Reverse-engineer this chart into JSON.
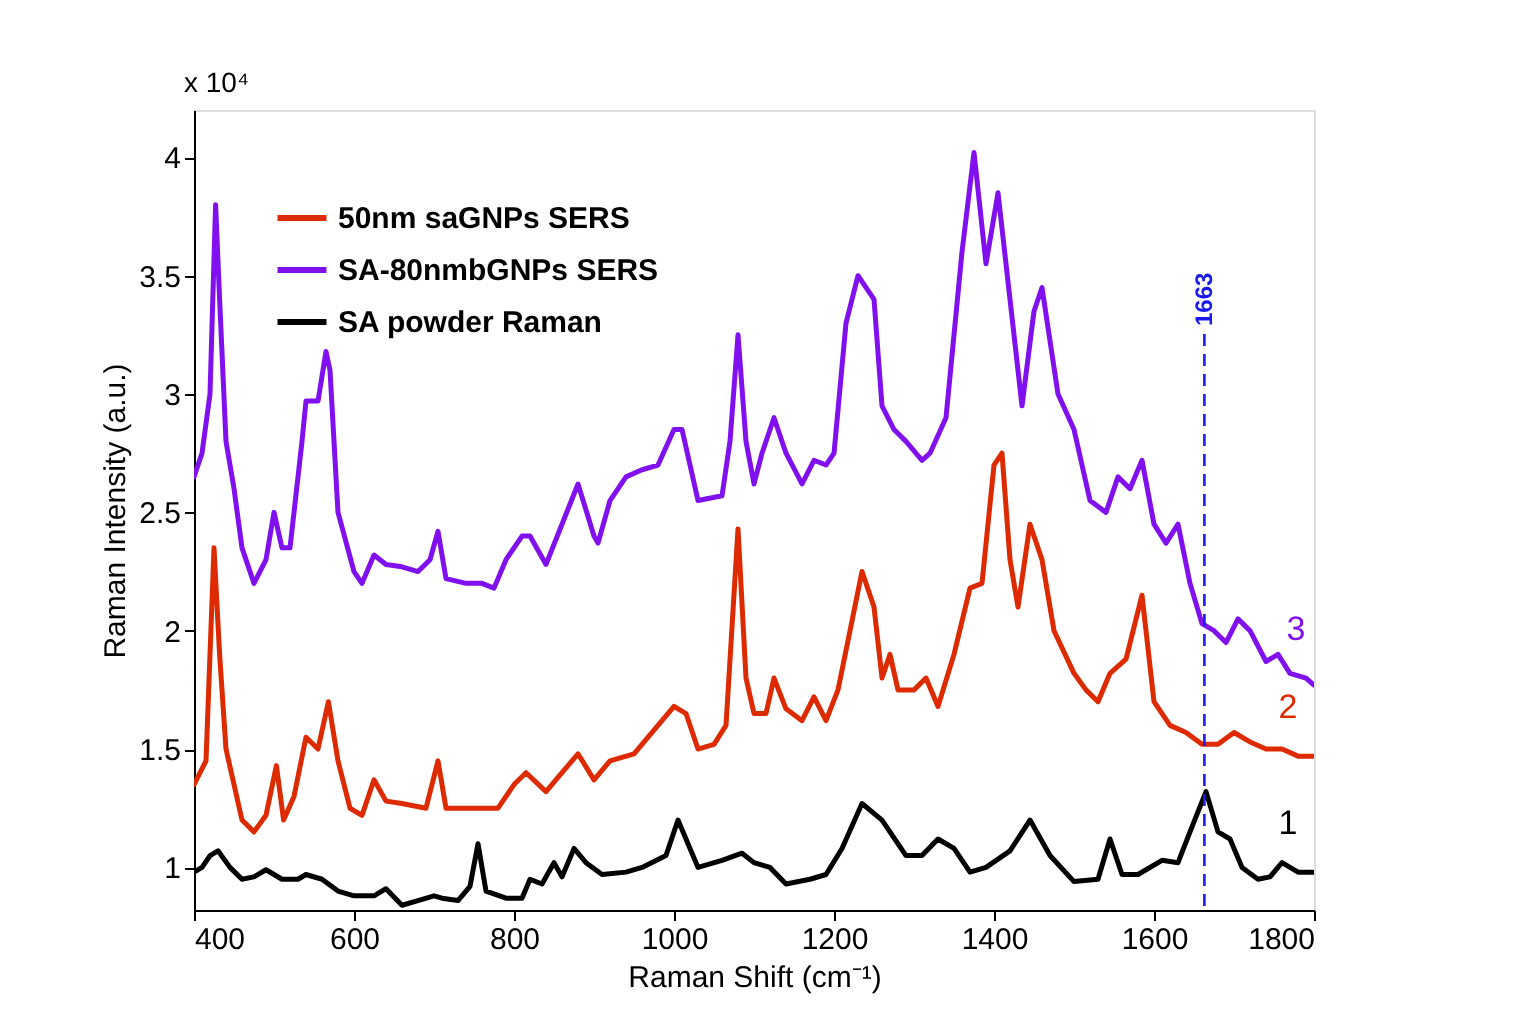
{
  "chart_data": {
    "type": "line",
    "xlabel": "Raman Shift (cm⁻¹)",
    "ylabel": "Raman Intensity (a.u.)",
    "xlim": [
      400,
      1800
    ],
    "xticks": [
      400,
      600,
      800,
      1000,
      1200,
      1400,
      1600,
      1800
    ],
    "ylim": [
      0.82,
      4.2
    ],
    "yticks": [
      1,
      1.5,
      2,
      2.5,
      3,
      3.5,
      4
    ],
    "grid": false,
    "legend": "top left",
    "line_style": "solid",
    "marker": "none",
    "series": [
      {
        "name": "50nm saGNPs SERS",
        "color": "#dd2a00",
        "x": [
          400,
          415,
          425,
          432,
          440,
          460,
          475,
          490,
          503,
          512,
          525,
          540,
          555,
          568,
          580,
          595,
          610,
          625,
          640,
          660,
          690,
          705,
          715,
          750,
          780,
          800,
          815,
          840,
          860,
          880,
          900,
          920,
          950,
          975,
          1000,
          1015,
          1030,
          1050,
          1065,
          1080,
          1090,
          1100,
          1115,
          1125,
          1140,
          1160,
          1175,
          1190,
          1205,
          1220,
          1235,
          1250,
          1260,
          1270,
          1280,
          1300,
          1315,
          1330,
          1350,
          1370,
          1385,
          1400,
          1410,
          1420,
          1430,
          1445,
          1460,
          1475,
          1500,
          1515,
          1530,
          1545,
          1565,
          1585,
          1600,
          1620,
          1640,
          1660,
          1680,
          1700,
          1720,
          1740,
          1760,
          1780,
          1800
        ],
        "values": [
          1.35,
          1.45,
          2.35,
          1.9,
          1.5,
          1.2,
          1.15,
          1.22,
          1.43,
          1.2,
          1.3,
          1.55,
          1.5,
          1.7,
          1.45,
          1.25,
          1.22,
          1.37,
          1.28,
          1.27,
          1.25,
          1.45,
          1.25,
          1.25,
          1.25,
          1.35,
          1.4,
          1.32,
          1.4,
          1.48,
          1.37,
          1.45,
          1.48,
          1.58,
          1.68,
          1.65,
          1.5,
          1.52,
          1.6,
          2.43,
          1.8,
          1.65,
          1.65,
          1.8,
          1.67,
          1.62,
          1.72,
          1.62,
          1.75,
          2.0,
          2.25,
          2.1,
          1.8,
          1.9,
          1.75,
          1.75,
          1.8,
          1.68,
          1.9,
          2.18,
          2.2,
          2.7,
          2.75,
          2.3,
          2.1,
          2.45,
          2.3,
          2.0,
          1.82,
          1.75,
          1.7,
          1.82,
          1.88,
          2.15,
          1.7,
          1.6,
          1.57,
          1.52,
          1.52,
          1.57,
          1.53,
          1.5,
          1.5,
          1.47,
          1.47
        ]
      },
      {
        "name": "SA-80nmbGNPs SERS",
        "color": "#8010ee",
        "x": [
          400,
          410,
          420,
          427,
          432,
          440,
          450,
          460,
          475,
          490,
          500,
          510,
          520,
          535,
          540,
          555,
          565,
          570,
          580,
          600,
          610,
          625,
          640,
          660,
          680,
          695,
          705,
          715,
          740,
          760,
          775,
          790,
          810,
          820,
          840,
          860,
          880,
          900,
          905,
          920,
          940,
          960,
          980,
          1000,
          1010,
          1030,
          1060,
          1070,
          1080,
          1090,
          1100,
          1110,
          1125,
          1140,
          1160,
          1175,
          1190,
          1200,
          1215,
          1230,
          1250,
          1260,
          1275,
          1290,
          1310,
          1320,
          1340,
          1360,
          1375,
          1390,
          1405,
          1420,
          1435,
          1450,
          1460,
          1480,
          1500,
          1520,
          1540,
          1555,
          1570,
          1585,
          1600,
          1615,
          1630,
          1645,
          1660,
          1675,
          1690,
          1705,
          1720,
          1740,
          1755,
          1770,
          1790,
          1800
        ],
        "values": [
          2.65,
          2.75,
          3.0,
          3.8,
          3.4,
          2.8,
          2.6,
          2.35,
          2.2,
          2.3,
          2.5,
          2.35,
          2.35,
          2.8,
          2.97,
          2.97,
          3.18,
          3.1,
          2.5,
          2.25,
          2.2,
          2.32,
          2.28,
          2.27,
          2.25,
          2.3,
          2.42,
          2.22,
          2.2,
          2.2,
          2.18,
          2.3,
          2.4,
          2.4,
          2.28,
          2.45,
          2.62,
          2.4,
          2.37,
          2.55,
          2.65,
          2.68,
          2.7,
          2.85,
          2.85,
          2.55,
          2.57,
          2.8,
          3.25,
          2.8,
          2.62,
          2.75,
          2.9,
          2.75,
          2.62,
          2.72,
          2.7,
          2.75,
          3.3,
          3.5,
          3.4,
          2.95,
          2.85,
          2.8,
          2.72,
          2.75,
          2.9,
          3.6,
          4.02,
          3.55,
          3.85,
          3.4,
          2.95,
          3.35,
          3.45,
          3.0,
          2.85,
          2.55,
          2.5,
          2.65,
          2.6,
          2.72,
          2.45,
          2.37,
          2.45,
          2.2,
          2.03,
          2.0,
          1.95,
          2.05,
          2.0,
          1.87,
          1.9,
          1.82,
          1.8,
          1.77
        ]
      },
      {
        "name": "SA powder Raman",
        "color": "#000000",
        "x": [
          400,
          410,
          420,
          430,
          445,
          460,
          475,
          490,
          510,
          530,
          540,
          560,
          580,
          600,
          625,
          640,
          660,
          680,
          700,
          710,
          730,
          745,
          755,
          765,
          790,
          810,
          820,
          835,
          850,
          860,
          875,
          890,
          910,
          940,
          960,
          990,
          1005,
          1015,
          1030,
          1060,
          1085,
          1100,
          1120,
          1140,
          1170,
          1190,
          1210,
          1235,
          1260,
          1290,
          1310,
          1330,
          1350,
          1370,
          1390,
          1420,
          1445,
          1470,
          1500,
          1530,
          1545,
          1560,
          1580,
          1610,
          1630,
          1645,
          1665,
          1680,
          1695,
          1710,
          1730,
          1745,
          1760,
          1780,
          1800
        ],
        "values": [
          0.98,
          1.0,
          1.05,
          1.07,
          1.0,
          0.95,
          0.96,
          0.99,
          0.95,
          0.95,
          0.97,
          0.95,
          0.9,
          0.88,
          0.88,
          0.91,
          0.84,
          0.86,
          0.88,
          0.87,
          0.86,
          0.92,
          1.1,
          0.9,
          0.87,
          0.87,
          0.95,
          0.93,
          1.02,
          0.96,
          1.08,
          1.02,
          0.97,
          0.98,
          1.0,
          1.05,
          1.2,
          1.12,
          1.0,
          1.03,
          1.06,
          1.02,
          1.0,
          0.93,
          0.95,
          0.97,
          1.08,
          1.27,
          1.2,
          1.05,
          1.05,
          1.12,
          1.08,
          0.98,
          1.0,
          1.07,
          1.2,
          1.05,
          0.94,
          0.95,
          1.12,
          0.97,
          0.97,
          1.03,
          1.02,
          1.15,
          1.32,
          1.15,
          1.12,
          1.0,
          0.95,
          0.96,
          1.02,
          0.98,
          0.98
        ]
      }
    ],
    "ref_lines": [
      {
        "axis": "x",
        "value": 1663,
        "label": "1663",
        "color": "#1a1aee",
        "line_style": "dashed"
      }
    ],
    "annotations": [
      "x 10⁴",
      "3",
      "2",
      "1"
    ]
  }
}
